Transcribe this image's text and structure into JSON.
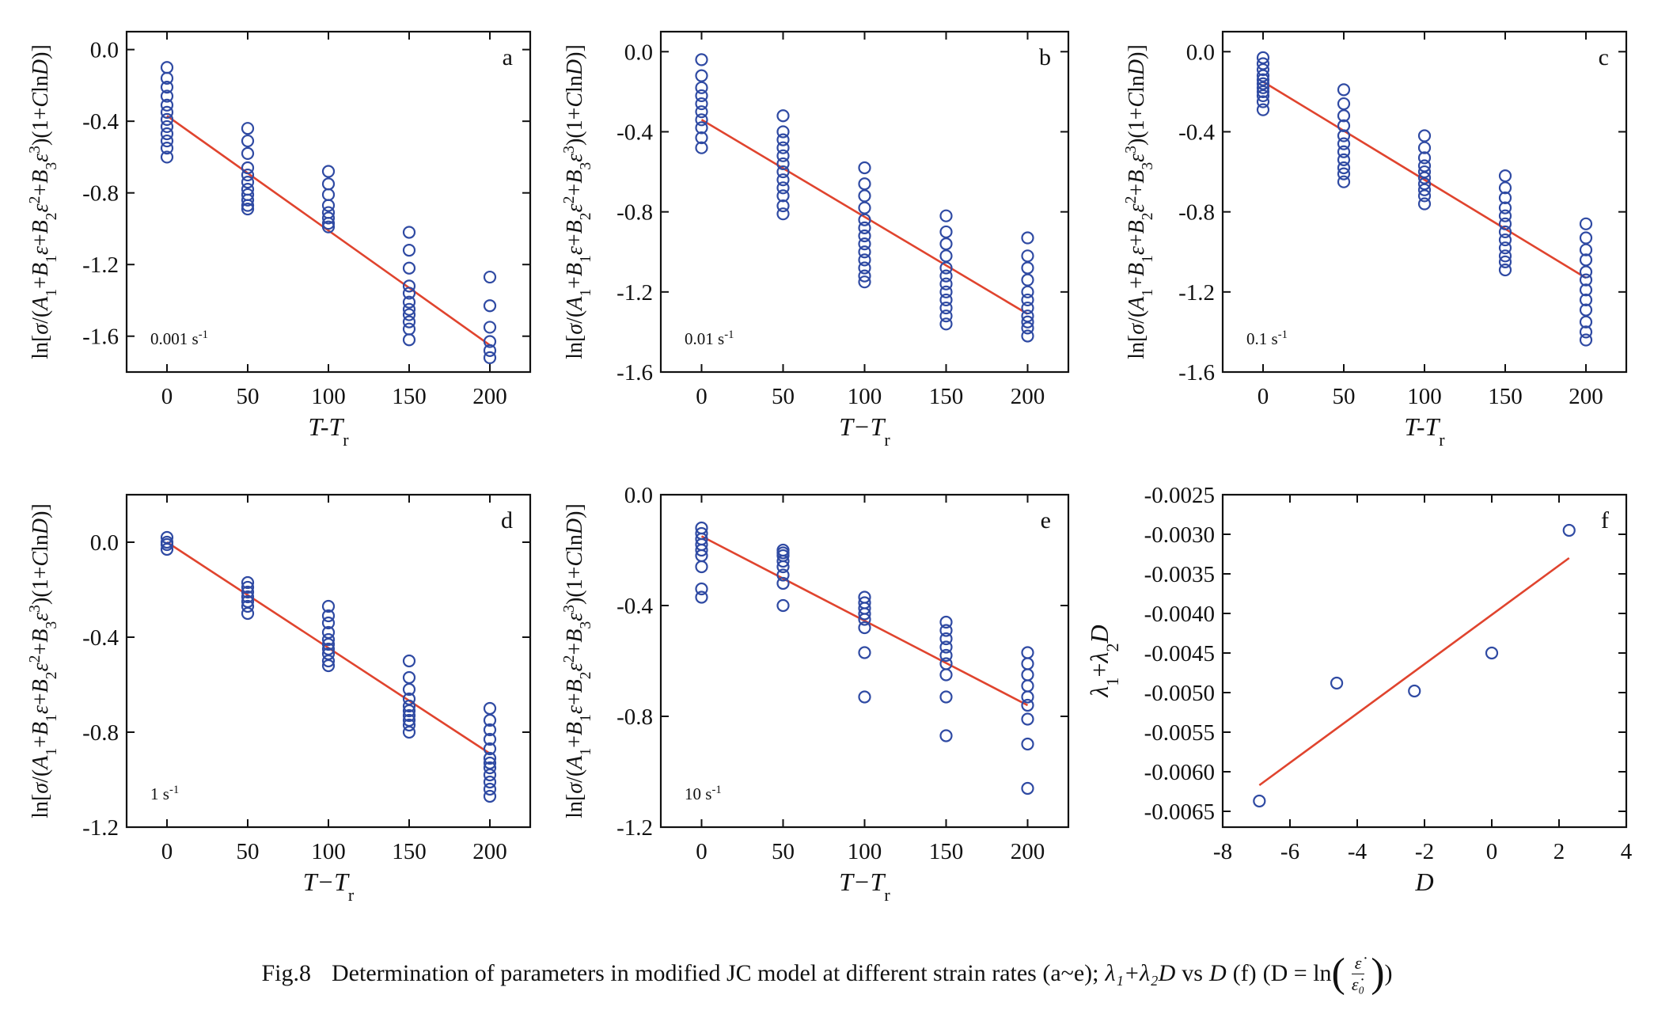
{
  "colors": {
    "marker": "#2f4aa3",
    "fit": "#e0442e",
    "axis": "#111111"
  },
  "caption": {
    "fig": "Fig.8",
    "main": "Determination of parameters  in modified JC model at different strain rates (a~e);",
    "lambda_expr": "λ₁+λ₂D",
    "vs": "vs",
    "D": "D",
    "f_tag": "(f)",
    "defn_open": "(D = ln",
    "frac_num": "ε̇",
    "frac_den": "ε̇₀",
    "defn_close": ")"
  },
  "chart_data": [
    {
      "id": "a",
      "type": "scatter",
      "panel_letter": "a",
      "annotation": "0.001 s⁻¹",
      "xlabel": "T-T",
      "xlabel_sub": "r",
      "ylabel": "ln[σ/(A₁+B₁ε+B₂ε²+B₃ε³)(1+ClnD)]",
      "xlim": [
        -25,
        225
      ],
      "ylim": [
        -1.8,
        0.1
      ],
      "xticks": [
        0,
        50,
        100,
        150,
        200
      ],
      "xtick_labels": [
        "0",
        "50",
        "100",
        "150",
        "200"
      ],
      "yticks": [
        0.0,
        -0.4,
        -0.8,
        -1.2,
        -1.6
      ],
      "ytick_labels": [
        "0.0",
        "-0.4",
        "-0.8",
        "-1.2",
        "-1.6"
      ],
      "points": {
        "x": [
          0,
          50,
          100,
          150,
          200
        ],
        "y": [
          [
            -0.1,
            -0.16,
            -0.21,
            -0.26,
            -0.31,
            -0.35,
            -0.39,
            -0.43,
            -0.47,
            -0.51,
            -0.55,
            -0.6
          ],
          [
            -0.44,
            -0.51,
            -0.58,
            -0.66,
            -0.7,
            -0.74,
            -0.78,
            -0.81,
            -0.84,
            -0.87,
            -0.89
          ],
          [
            -0.68,
            -0.75,
            -0.81,
            -0.87,
            -0.91,
            -0.94,
            -0.97,
            -0.99
          ],
          [
            -1.02,
            -1.12,
            -1.22,
            -1.32,
            -1.36,
            -1.41,
            -1.45,
            -1.48,
            -1.52,
            -1.56,
            -1.62
          ],
          [
            -1.27,
            -1.43,
            -1.55,
            -1.63,
            -1.68,
            -1.72
          ]
        ]
      },
      "fit": {
        "x": [
          0,
          200
        ],
        "y": [
          -0.37,
          -1.65
        ]
      }
    },
    {
      "id": "b",
      "type": "scatter",
      "panel_letter": "b",
      "annotation": "0.01 s⁻¹",
      "xlabel": "T−T",
      "xlabel_sub": "r",
      "ylabel": "ln[σ/(A₁+B₁ε+B₂ε²+B₃ε³)(1+ClnD)]",
      "xlim": [
        -25,
        225
      ],
      "ylim": [
        -1.6,
        0.1
      ],
      "xticks": [
        0,
        50,
        100,
        150,
        200
      ],
      "xtick_labels": [
        "0",
        "50",
        "100",
        "150",
        "200"
      ],
      "yticks": [
        0.0,
        -0.4,
        -0.8,
        -1.2,
        -1.6
      ],
      "ytick_labels": [
        "0.0",
        "-0.4",
        "-0.8",
        "-1.2",
        "-1.6"
      ],
      "points": {
        "x": [
          0,
          50,
          100,
          150,
          200
        ],
        "y": [
          [
            -0.04,
            -0.12,
            -0.18,
            -0.22,
            -0.26,
            -0.3,
            -0.34,
            -0.38,
            -0.43,
            -0.48
          ],
          [
            -0.32,
            -0.4,
            -0.44,
            -0.48,
            -0.52,
            -0.56,
            -0.6,
            -0.64,
            -0.68,
            -0.72,
            -0.77,
            -0.81
          ],
          [
            -0.58,
            -0.66,
            -0.72,
            -0.78,
            -0.84,
            -0.88,
            -0.92,
            -0.96,
            -1.0,
            -1.04,
            -1.08,
            -1.12,
            -1.15
          ],
          [
            -0.82,
            -0.9,
            -0.96,
            -1.02,
            -1.08,
            -1.12,
            -1.16,
            -1.2,
            -1.24,
            -1.28,
            -1.32,
            -1.36
          ],
          [
            -0.93,
            -1.02,
            -1.08,
            -1.14,
            -1.2,
            -1.24,
            -1.28,
            -1.32,
            -1.35,
            -1.38,
            -1.42
          ]
        ]
      },
      "fit": {
        "x": [
          0,
          200
        ],
        "y": [
          -0.34,
          -1.31
        ]
      }
    },
    {
      "id": "c",
      "type": "scatter",
      "panel_letter": "c",
      "annotation": "0.1 s⁻¹",
      "xlabel": "T-T",
      "xlabel_sub": "r",
      "ylabel": "ln[σ/(A₁+B₁ε+B₂ε²+B₃ε³)(1+ClnD)]",
      "xlim": [
        -25,
        225
      ],
      "ylim": [
        -1.6,
        0.1
      ],
      "xticks": [
        0,
        50,
        100,
        150,
        200
      ],
      "xtick_labels": [
        "0",
        "50",
        "100",
        "150",
        "200"
      ],
      "yticks": [
        0.0,
        -0.4,
        -0.8,
        -1.2,
        -1.6
      ],
      "ytick_labels": [
        "0.0",
        "-0.4",
        "-0.8",
        "-1.2",
        "-1.6"
      ],
      "points": {
        "x": [
          0,
          50,
          100,
          150,
          200
        ],
        "y": [
          [
            -0.03,
            -0.06,
            -0.09,
            -0.12,
            -0.14,
            -0.16,
            -0.18,
            -0.2,
            -0.22,
            -0.25,
            -0.29
          ],
          [
            -0.19,
            -0.26,
            -0.32,
            -0.37,
            -0.42,
            -0.46,
            -0.5,
            -0.54,
            -0.58,
            -0.61,
            -0.65
          ],
          [
            -0.42,
            -0.48,
            -0.53,
            -0.57,
            -0.6,
            -0.63,
            -0.66,
            -0.69,
            -0.72,
            -0.76
          ],
          [
            -0.62,
            -0.68,
            -0.73,
            -0.78,
            -0.82,
            -0.86,
            -0.9,
            -0.94,
            -0.98,
            -1.02,
            -1.05,
            -1.09
          ],
          [
            -0.86,
            -0.93,
            -0.99,
            -1.04,
            -1.1,
            -1.14,
            -1.19,
            -1.24,
            -1.29,
            -1.35,
            -1.4,
            -1.44
          ]
        ]
      },
      "fit": {
        "x": [
          0,
          200
        ],
        "y": [
          -0.15,
          -1.13
        ]
      }
    },
    {
      "id": "d",
      "type": "scatter",
      "panel_letter": "d",
      "annotation": "1 s⁻¹",
      "xlabel": "T−T",
      "xlabel_sub": "r",
      "ylabel": "ln[σ/(A₁+B₁ε+B₂ε²+B₃ε³)(1+ClnD)]",
      "xlim": [
        -25,
        225
      ],
      "ylim": [
        -1.2,
        0.2
      ],
      "xticks": [
        0,
        50,
        100,
        150,
        200
      ],
      "xtick_labels": [
        "0",
        "50",
        "100",
        "150",
        "200"
      ],
      "yticks": [
        0.0,
        -0.4,
        -0.8,
        -1.2
      ],
      "ytick_labels": [
        "0.0",
        "-0.4",
        "-0.8",
        "-1.2"
      ],
      "points": {
        "x": [
          0,
          50,
          100,
          150,
          200
        ],
        "y": [
          [
            0.02,
            0.0,
            -0.01,
            -0.03
          ],
          [
            -0.17,
            -0.19,
            -0.21,
            -0.23,
            -0.25,
            -0.27,
            -0.3
          ],
          [
            -0.27,
            -0.31,
            -0.34,
            -0.38,
            -0.41,
            -0.43,
            -0.45,
            -0.47,
            -0.5,
            -0.52
          ],
          [
            -0.5,
            -0.57,
            -0.62,
            -0.66,
            -0.69,
            -0.71,
            -0.73,
            -0.75,
            -0.77,
            -0.8
          ],
          [
            -0.7,
            -0.75,
            -0.79,
            -0.83,
            -0.87,
            -0.91,
            -0.93,
            -0.95,
            -0.98,
            -1.01,
            -1.04,
            -1.07
          ]
        ]
      },
      "fit": {
        "x": [
          0,
          200
        ],
        "y": [
          0.0,
          -0.89
        ]
      }
    },
    {
      "id": "e",
      "type": "scatter",
      "panel_letter": "e",
      "annotation": "10 s⁻¹",
      "xlabel": "T−T",
      "xlabel_sub": "r",
      "ylabel": "ln[σ/(A₁+B₁ε+B₂ε²+B₃ε³)(1+ClnD)]",
      "xlim": [
        -25,
        225
      ],
      "ylim": [
        -1.2,
        0.0
      ],
      "xticks": [
        0,
        50,
        100,
        150,
        200
      ],
      "xtick_labels": [
        "0",
        "50",
        "100",
        "150",
        "200"
      ],
      "yticks": [
        0.0,
        -0.4,
        -0.8,
        -1.2
      ],
      "ytick_labels": [
        "0.0",
        "-0.4",
        "-0.8",
        "-1.2"
      ],
      "points": {
        "x": [
          0,
          50,
          100,
          150,
          200
        ],
        "y": [
          [
            -0.12,
            -0.14,
            -0.16,
            -0.18,
            -0.2,
            -0.22,
            -0.26,
            -0.34,
            -0.37
          ],
          [
            -0.2,
            -0.21,
            -0.22,
            -0.24,
            -0.26,
            -0.29,
            -0.32,
            -0.4
          ],
          [
            -0.37,
            -0.39,
            -0.41,
            -0.43,
            -0.45,
            -0.48,
            -0.57,
            -0.73
          ],
          [
            -0.46,
            -0.49,
            -0.52,
            -0.55,
            -0.58,
            -0.61,
            -0.65,
            -0.73,
            -0.87
          ],
          [
            -0.57,
            -0.61,
            -0.65,
            -0.69,
            -0.73,
            -0.76,
            -0.81,
            -0.9,
            -1.06
          ]
        ]
      },
      "fit": {
        "x": [
          0,
          200
        ],
        "y": [
          -0.15,
          -0.76
        ]
      }
    },
    {
      "id": "f",
      "type": "scatter",
      "panel_letter": "f",
      "xlabel": "D",
      "ylabel": "λ₁+λ₂D",
      "xlim": [
        -8,
        4
      ],
      "ylim": [
        -0.0067,
        -0.0025
      ],
      "xticks": [
        -8,
        -6,
        -4,
        -2,
        0,
        2,
        4
      ],
      "xtick_labels": [
        "-8",
        "-6",
        "-4",
        "-2",
        "0",
        "2",
        "4"
      ],
      "yticks": [
        -0.0025,
        -0.003,
        -0.0035,
        -0.004,
        -0.0045,
        -0.005,
        -0.0055,
        -0.006,
        -0.0065
      ],
      "ytick_labels": [
        "-0.0025",
        "-0.0030",
        "-0.0035",
        "-0.0040",
        "-0.0045",
        "-0.0050",
        "-0.0055",
        "-0.0060",
        "-0.0065"
      ],
      "points": {
        "x": [
          -6.91,
          -4.61,
          -2.3,
          0.0,
          2.3
        ],
        "y": [
          -0.00637,
          -0.00488,
          -0.00498,
          -0.0045,
          -0.00295
        ]
      },
      "fit": {
        "x": [
          -6.91,
          2.3
        ],
        "y": [
          -0.00617,
          -0.0033
        ]
      }
    }
  ]
}
